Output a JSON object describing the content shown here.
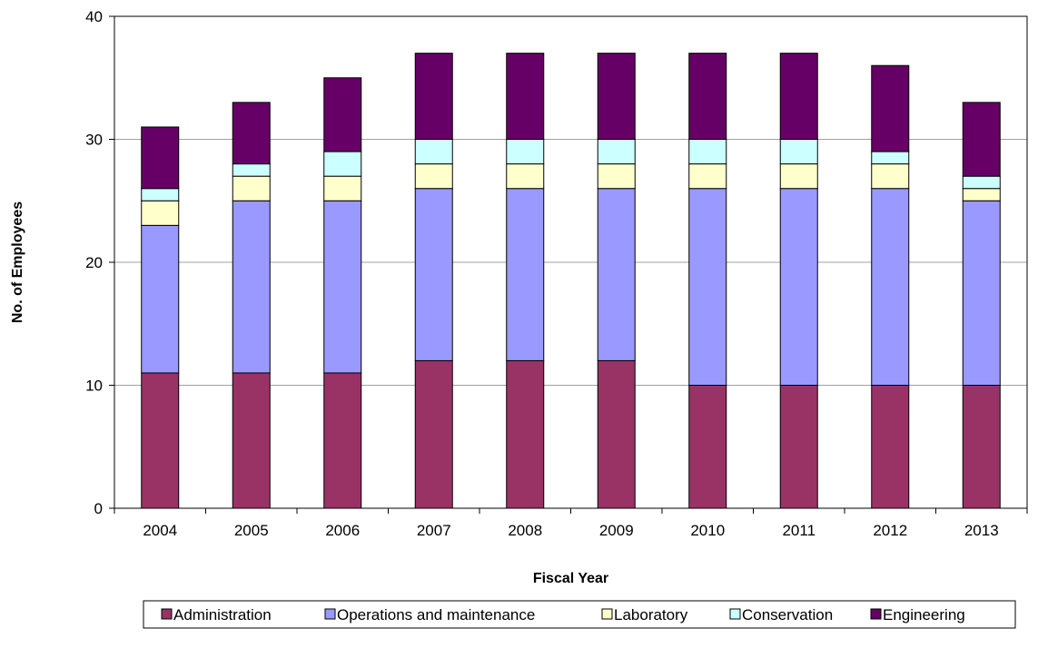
{
  "chart_data": {
    "type": "bar",
    "stacked": true,
    "title": "",
    "xlabel": "Fiscal Year",
    "ylabel": "No. of Employees",
    "ylim": [
      0,
      40
    ],
    "yticks": [
      0,
      10,
      20,
      30,
      40
    ],
    "grid": true,
    "legend_position": "bottom",
    "categories": [
      "2004",
      "2005",
      "2006",
      "2007",
      "2008",
      "2009",
      "2010",
      "2011",
      "2012",
      "2013"
    ],
    "series": [
      {
        "name": "Administration",
        "color": "#993366",
        "values": [
          11,
          11,
          11,
          12,
          12,
          12,
          10,
          10,
          10,
          10
        ]
      },
      {
        "name": "Operations and maintenance",
        "color": "#9999FF",
        "values": [
          12,
          14,
          14,
          14,
          14,
          14,
          16,
          16,
          16,
          15
        ]
      },
      {
        "name": "Laboratory",
        "color": "#FFFFCC",
        "values": [
          2,
          2,
          2,
          2,
          2,
          2,
          2,
          2,
          2,
          1
        ]
      },
      {
        "name": "Conservation",
        "color": "#CCFFFF",
        "values": [
          1,
          1,
          2,
          2,
          2,
          2,
          2,
          2,
          1,
          1
        ]
      },
      {
        "name": "Engineering",
        "color": "#660066",
        "values": [
          5,
          5,
          6,
          7,
          7,
          7,
          7,
          7,
          7,
          6
        ]
      }
    ]
  }
}
